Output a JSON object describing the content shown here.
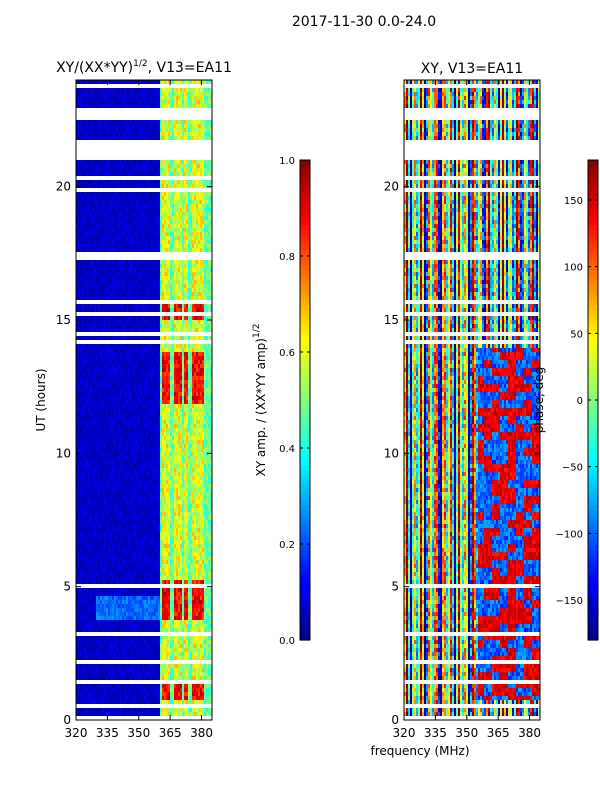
{
  "suptitle": "2017-11-30 0.0-24.0",
  "colors": {
    "missing_rows": "#ffffff",
    "frame": "#000000",
    "colormap": "jet"
  },
  "chart_data": [
    {
      "type": "heatmap",
      "title_main": "XY/(XX*YY)",
      "title_exp": "1/2",
      "title_rest": ", V13=EA11",
      "xlabel": "",
      "ylabel": "UT (hours)",
      "xlim": [
        320,
        385
      ],
      "ylim": [
        0,
        24
      ],
      "xticks": [
        320,
        335,
        350,
        365,
        380
      ],
      "yticks": [
        0,
        5,
        10,
        15,
        20
      ],
      "colorbar": {
        "label_main": "XY amp. / (XX*YY amp)",
        "label_exp": "1/2",
        "range": [
          0.0,
          1.0
        ],
        "ticks": [
          0.0,
          0.2,
          0.4,
          0.6,
          0.8,
          1.0
        ],
        "tick_labels": [
          "0.0",
          "0.2",
          "0.4",
          "0.6",
          "0.8",
          "1.0"
        ]
      },
      "description_bands": {
        "low_value_region_mhz": [
          320,
          361
        ],
        "active_channels_mhz": [
          362,
          364,
          368,
          370,
          373,
          376,
          378,
          380
        ],
        "high_value_hours": [
          [
            3.7,
            5.2
          ],
          [
            0.7,
            1.3
          ],
          [
            11.9,
            13.8
          ],
          [
            15.0,
            15.8
          ]
        ]
      }
    },
    {
      "type": "heatmap",
      "title_main": "XY, V13=EA11",
      "xlabel": "frequency (MHz)",
      "ylabel": "",
      "xlim": [
        320,
        385
      ],
      "ylim": [
        0,
        24
      ],
      "xticks": [
        320,
        335,
        350,
        365,
        380
      ],
      "yticks": [
        0,
        5,
        10,
        15,
        20
      ],
      "colorbar": {
        "label_main": "phase, deg",
        "range": [
          -180,
          180
        ],
        "ticks": [
          -150,
          -100,
          -50,
          0,
          50,
          100,
          150
        ],
        "tick_labels": [
          "−150",
          "−100",
          "−50",
          "0",
          "50",
          "100",
          "150"
        ]
      }
    }
  ],
  "missing_hours": [
    [
      0.05,
      0.12
    ],
    [
      0.45,
      0.55
    ],
    [
      1.42,
      1.5
    ],
    [
      1.62,
      1.7
    ],
    [
      1.92,
      2.02
    ],
    [
      2.12,
      2.18
    ],
    [
      3.18,
      3.24
    ],
    [
      3.58,
      3.62
    ],
    [
      5.02,
      5.08
    ],
    [
      5.55,
      5.62
    ],
    [
      6.15,
      6.22
    ],
    [
      7.95,
      8.0
    ],
    [
      9.9,
      9.95
    ],
    [
      13.45,
      13.5
    ],
    [
      14.15,
      14.22
    ],
    [
      14.42,
      14.5
    ],
    [
      15.2,
      15.26
    ],
    [
      15.6,
      15.68
    ],
    [
      17.2,
      17.5
    ],
    [
      19.05,
      19.12
    ],
    [
      19.82,
      19.9
    ],
    [
      20.3,
      20.42
    ],
    [
      20.5,
      20.55
    ],
    [
      21.05,
      21.75
    ],
    [
      22.55,
      22.95
    ],
    [
      23.5,
      23.55
    ],
    [
      23.75,
      23.78
    ]
  ]
}
